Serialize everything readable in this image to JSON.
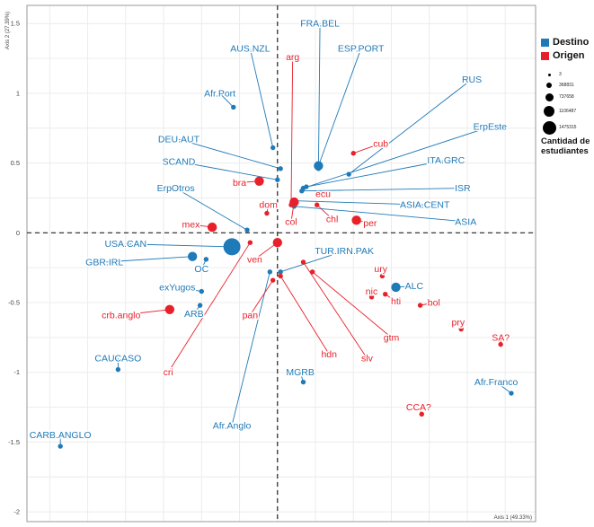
{
  "chart_data": {
    "type": "scatter",
    "xlabel": "Axis 1 (49.33%)",
    "ylabel": "Axis 2 (27.39%)",
    "xlim": [
      -1.65,
      1.7
    ],
    "ylim": [
      -2.07,
      1.63
    ],
    "yticks": [
      1.5,
      1,
      0.5,
      0,
      -0.5,
      -1,
      -1.5,
      -2
    ],
    "grid": true,
    "reference_lines": {
      "x": 0,
      "y": 0
    },
    "colors": {
      "Destino": "#1f7ab8",
      "Origen": "#e8202a"
    },
    "series": [
      {
        "name": "Destino",
        "points": [
          {
            "label": "AUS.NZL",
            "x": -0.03,
            "y": 0.61,
            "size": "small",
            "lx": -0.18,
            "ly": 1.32
          },
          {
            "label": "FRA.BEL",
            "x": 0.27,
            "y": 0.46,
            "size": "small",
            "lx": 0.28,
            "ly": 1.5
          },
          {
            "label": "ESP.PORT",
            "x": 0.27,
            "y": 0.48,
            "size": "medium",
            "lx": 0.55,
            "ly": 1.32
          },
          {
            "label": "RUS",
            "x": 0.47,
            "y": 0.42,
            "size": "small",
            "lx": 1.28,
            "ly": 1.1
          },
          {
            "label": "Afr.Port",
            "x": -0.29,
            "y": 0.9,
            "size": "small",
            "lx": -0.38,
            "ly": 1.0
          },
          {
            "label": "DEU.AUT",
            "x": 0.02,
            "y": 0.46,
            "size": "small",
            "lx": -0.65,
            "ly": 0.67
          },
          {
            "label": "SCAND",
            "x": 0.0,
            "y": 0.38,
            "size": "small",
            "lx": -0.65,
            "ly": 0.51
          },
          {
            "label": "ErpEste",
            "x": 0.17,
            "y": 0.32,
            "size": "small",
            "lx": 1.4,
            "ly": 0.76
          },
          {
            "label": "ITA.GRC",
            "x": 0.19,
            "y": 0.33,
            "size": "small",
            "lx": 1.11,
            "ly": 0.52
          },
          {
            "label": "ISR",
            "x": 0.16,
            "y": 0.3,
            "size": "small",
            "lx": 1.22,
            "ly": 0.32
          },
          {
            "label": "ASIA.CENT",
            "x": 0.1,
            "y": 0.23,
            "size": "small",
            "lx": 0.97,
            "ly": 0.2
          },
          {
            "label": "ASIA",
            "x": 0.11,
            "y": 0.19,
            "size": "small",
            "lx": 1.24,
            "ly": 0.08
          },
          {
            "label": "ErpOtros",
            "x": -0.2,
            "y": 0.02,
            "size": "small",
            "lx": -0.67,
            "ly": 0.32
          },
          {
            "label": "USA.CAN",
            "x": -0.3,
            "y": -0.1,
            "size": "large",
            "lx": -1.0,
            "ly": -0.08
          },
          {
            "label": "GBR.IRL",
            "x": -0.56,
            "y": -0.17,
            "size": "medium",
            "lx": -1.14,
            "ly": -0.21
          },
          {
            "label": "OC",
            "x": -0.47,
            "y": -0.19,
            "size": "small",
            "lx": -0.5,
            "ly": -0.26
          },
          {
            "label": "exYugos",
            "x": -0.5,
            "y": -0.42,
            "size": "small",
            "lx": -0.66,
            "ly": -0.39
          },
          {
            "label": "ARB",
            "x": -0.51,
            "y": -0.52,
            "size": "small",
            "lx": -0.55,
            "ly": -0.58
          },
          {
            "label": "TUR.IRN.PAK",
            "x": 0.02,
            "y": -0.28,
            "size": "small",
            "lx": 0.44,
            "ly": -0.13
          },
          {
            "label": "ALC",
            "x": 0.78,
            "y": -0.39,
            "size": "medium",
            "lx": 0.9,
            "ly": -0.38
          },
          {
            "label": "CAUCASO",
            "x": -1.05,
            "y": -0.98,
            "size": "small",
            "lx": -1.05,
            "ly": -0.9
          },
          {
            "label": "MGRB",
            "x": 0.17,
            "y": -1.07,
            "size": "small",
            "lx": 0.15,
            "ly": -1.0
          },
          {
            "label": "Afr.Franco",
            "x": 1.54,
            "y": -1.15,
            "size": "small",
            "lx": 1.44,
            "ly": -1.07
          },
          {
            "label": "Afr.Anglo",
            "x": -0.05,
            "y": -0.28,
            "size": "small",
            "lx": -0.3,
            "ly": -1.38
          },
          {
            "label": "CARB.ANGLO",
            "x": -1.43,
            "y": -1.53,
            "size": "small",
            "lx": -1.43,
            "ly": -1.45
          }
        ]
      },
      {
        "name": "Origen",
        "points": [
          {
            "label": "arg",
            "x": 0.09,
            "y": 0.2,
            "size": "small",
            "lx": 0.1,
            "ly": 1.26
          },
          {
            "label": "cub",
            "x": 0.5,
            "y": 0.57,
            "size": "small",
            "lx": 0.68,
            "ly": 0.64
          },
          {
            "label": "bra",
            "x": -0.12,
            "y": 0.37,
            "size": "medium",
            "lx": -0.25,
            "ly": 0.36
          },
          {
            "label": "ecu",
            "x": 0.32,
            "y": 0.27,
            "size": "small",
            "lx": 0.3,
            "ly": 0.28
          },
          {
            "label": "dom",
            "x": -0.07,
            "y": 0.14,
            "size": "small",
            "lx": -0.06,
            "ly": 0.2
          },
          {
            "label": "col",
            "x": 0.11,
            "y": 0.22,
            "size": "medium",
            "lx": 0.09,
            "ly": 0.08
          },
          {
            "label": "chl",
            "x": 0.26,
            "y": 0.2,
            "size": "small",
            "lx": 0.36,
            "ly": 0.1
          },
          {
            "label": "per",
            "x": 0.52,
            "y": 0.09,
            "size": "medium",
            "lx": 0.61,
            "ly": 0.07
          },
          {
            "label": "mex",
            "x": -0.43,
            "y": 0.04,
            "size": "medium",
            "lx": -0.57,
            "ly": 0.06
          },
          {
            "label": "ven",
            "x": 0.0,
            "y": -0.07,
            "size": "medium",
            "lx": -0.15,
            "ly": -0.19
          },
          {
            "label": "cri",
            "x": -0.18,
            "y": -0.07,
            "size": "small",
            "lx": -0.72,
            "ly": -1.0
          },
          {
            "label": "crb.anglo",
            "x": -0.71,
            "y": -0.55,
            "size": "medium",
            "lx": -1.03,
            "ly": -0.59
          },
          {
            "label": "pan",
            "x": -0.03,
            "y": -0.34,
            "size": "small",
            "lx": -0.18,
            "ly": -0.59
          },
          {
            "label": "hdn",
            "x": 0.02,
            "y": -0.31,
            "size": "small",
            "lx": 0.34,
            "ly": -0.87
          },
          {
            "label": "slv",
            "x": 0.17,
            "y": -0.21,
            "size": "small",
            "lx": 0.59,
            "ly": -0.9
          },
          {
            "label": "gtm",
            "x": 0.23,
            "y": -0.28,
            "size": "small",
            "lx": 0.75,
            "ly": -0.75
          },
          {
            "label": "ury",
            "x": 0.69,
            "y": -0.31,
            "size": "small",
            "lx": 0.68,
            "ly": -0.26
          },
          {
            "label": "nic",
            "x": 0.62,
            "y": -0.46,
            "size": "small",
            "lx": 0.62,
            "ly": -0.42
          },
          {
            "label": "hti",
            "x": 0.71,
            "y": -0.44,
            "size": "small",
            "lx": 0.78,
            "ly": -0.49
          },
          {
            "label": "bol",
            "x": 0.94,
            "y": -0.52,
            "size": "small",
            "lx": 1.03,
            "ly": -0.5
          },
          {
            "label": "pry",
            "x": 1.21,
            "y": -0.69,
            "size": "small",
            "lx": 1.19,
            "ly": -0.64
          },
          {
            "label": "SA?",
            "x": 1.47,
            "y": -0.8,
            "size": "small",
            "lx": 1.47,
            "ly": -0.75
          },
          {
            "label": "CCA?",
            "x": 0.95,
            "y": -1.3,
            "size": "small",
            "lx": 0.93,
            "ly": -1.25
          }
        ]
      }
    ]
  },
  "legend": {
    "items": [
      {
        "label": "Destino",
        "color": "#1f7ab8"
      },
      {
        "label": "Origen",
        "color": "#e8202a"
      }
    ],
    "sizes": [
      "3",
      "368831",
      "737658",
      "1106487",
      "1475315"
    ],
    "sizes_title": "Cantidad de estudiantes"
  }
}
